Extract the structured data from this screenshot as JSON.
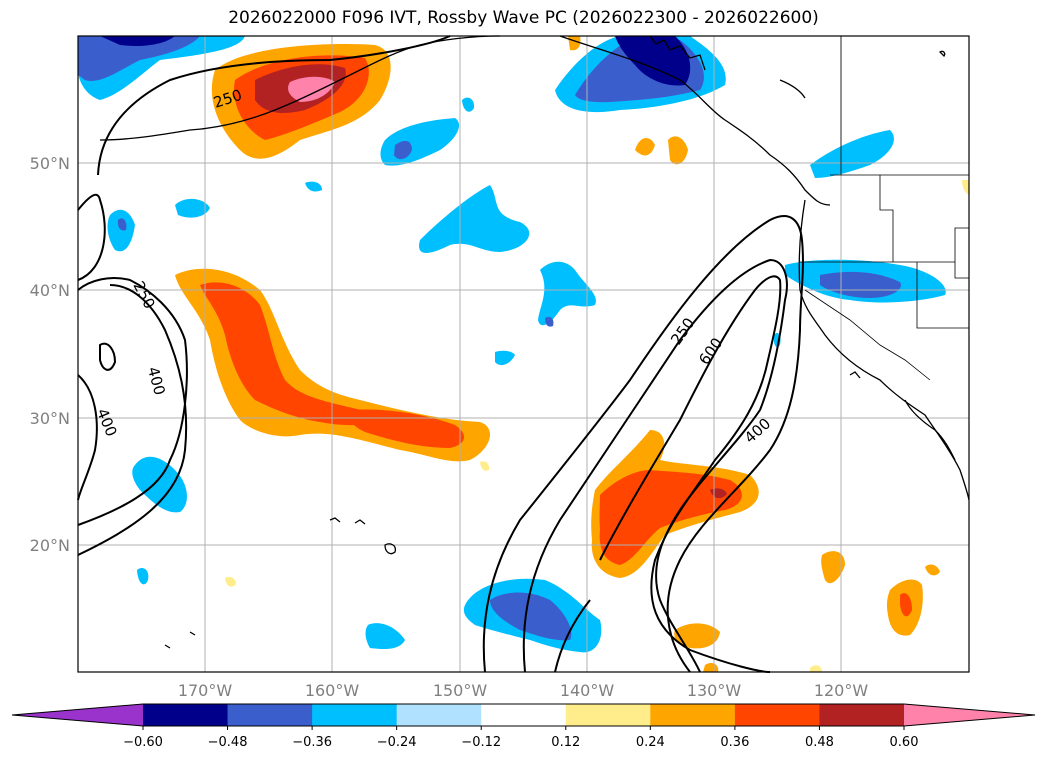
{
  "title": "2026022000 F096 IVT, Rossby Wave PC (2026022300 - 2026022600)",
  "map": {
    "lat_labels": [
      "50°N",
      "40°N",
      "30°N",
      "20°N"
    ],
    "lon_labels": [
      "170°W",
      "160°W",
      "150°W",
      "140°W",
      "130°W",
      "120°W"
    ],
    "gridlines": true
  },
  "colorbar": {
    "levels": [
      "−0.60",
      "−0.48",
      "−0.36",
      "−0.24",
      "−0.12",
      "0.12",
      "0.24",
      "0.36",
      "0.48",
      "0.60"
    ],
    "colors": [
      "#9933cc",
      "#00008b",
      "#3a5fcd",
      "#00bfff",
      "#b0e2ff",
      "#ffffff",
      "#ffec8b",
      "#ffa500",
      "#ff4500",
      "#b22222",
      "#ff82ab"
    ]
  },
  "contour_labels": [
    "250",
    "250",
    "400",
    "400",
    "250",
    "600",
    "400"
  ]
}
